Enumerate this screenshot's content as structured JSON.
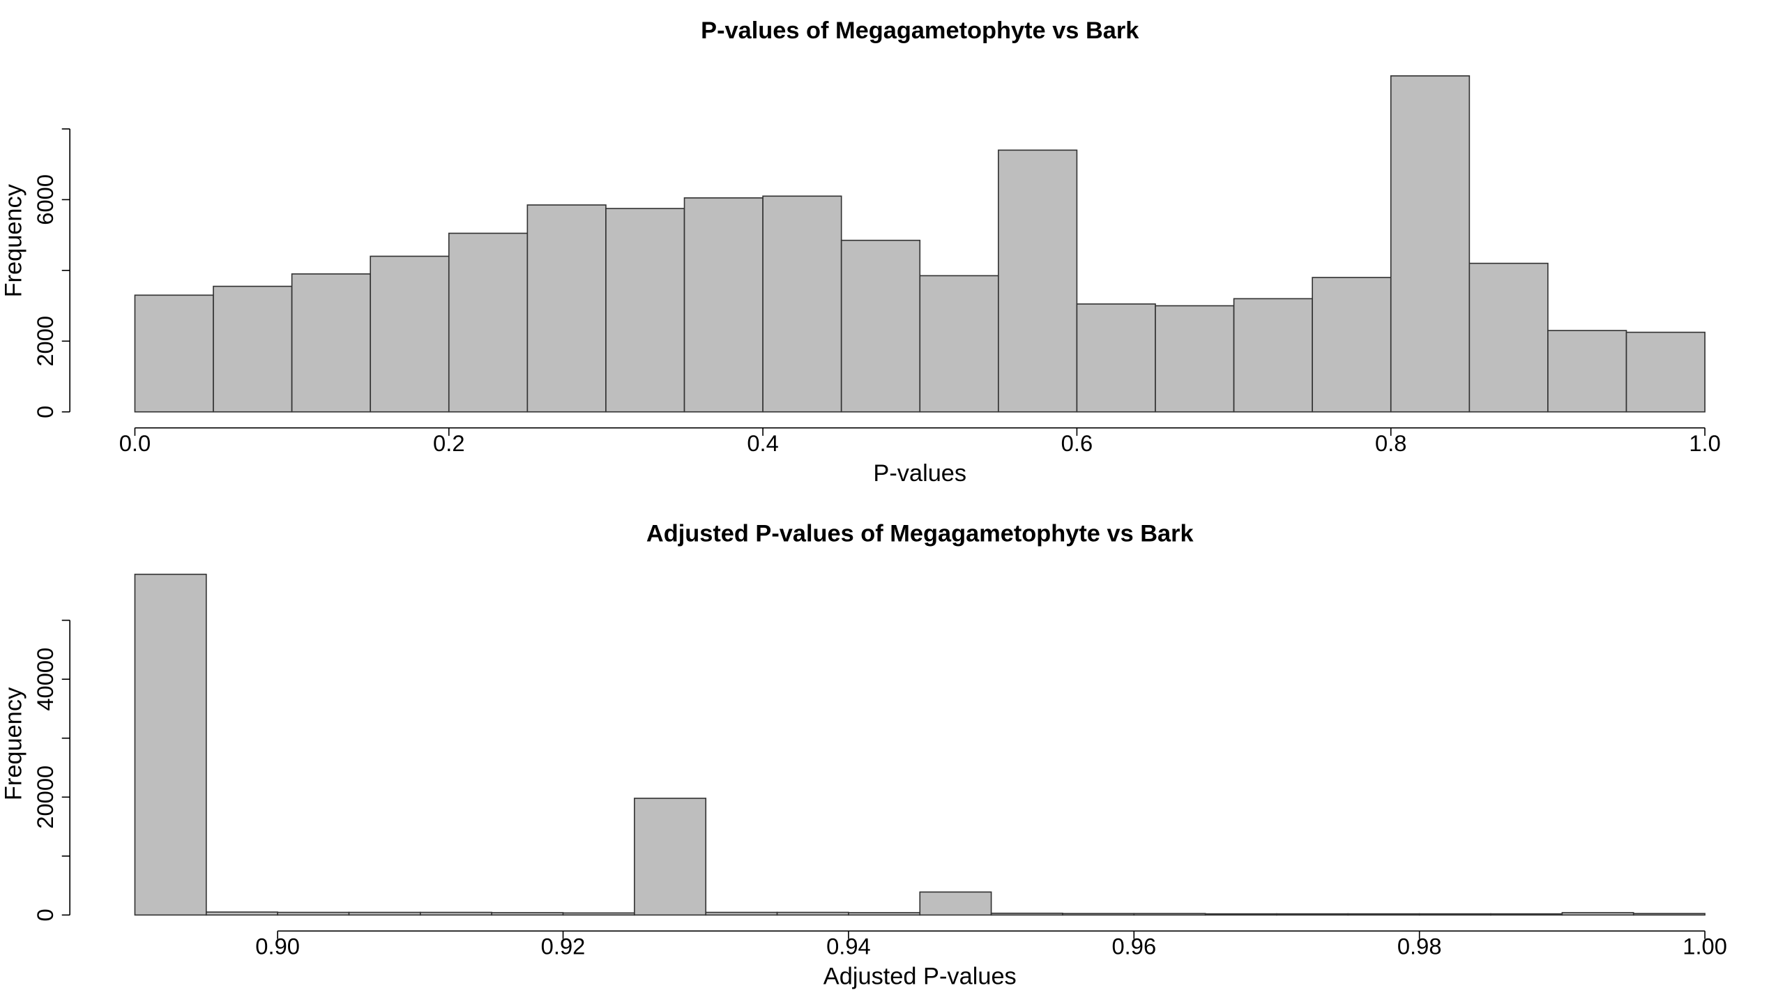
{
  "chart_data": [
    {
      "type": "histogram",
      "title": "P-values of Megagametophyte vs Bark",
      "x_label": "P-values",
      "y_label": "Frequency",
      "color": "#bebebe",
      "bins": [
        0,
        0.05,
        0.1,
        0.15,
        0.2,
        0.25,
        0.3,
        0.35,
        0.4,
        0.45,
        0.5,
        0.55,
        0.6,
        0.65,
        0.7,
        0.75,
        0.8,
        0.85,
        0.9,
        0.95,
        1
      ],
      "values": [
        3300,
        3550,
        3900,
        4400,
        5050,
        5850,
        5750,
        6050,
        6100,
        4850,
        3850,
        7400,
        3050,
        3000,
        3200,
        3800,
        9500,
        4200,
        2300,
        2250
      ],
      "xlim": [
        0,
        1
      ],
      "ylim": [
        0,
        10000
      ],
      "xticks": [
        {
          "value": 0,
          "label": "0.0"
        },
        0.2,
        0.4,
        0.6,
        0.8,
        {
          "value": 1,
          "label": "1.0"
        }
      ],
      "yticks": [
        0,
        2000,
        6000
      ],
      "ytick_marks": [
        0,
        2000,
        4000,
        6000,
        8000
      ]
    },
    {
      "type": "histogram",
      "title": "Adjusted P-values of Megagametophyte vs Bark",
      "x_label": "Adjusted P-values",
      "y_label": "Frequency",
      "color": "#bebebe",
      "bins": [
        0.89,
        0.895,
        0.9,
        0.905,
        0.91,
        0.915,
        0.92,
        0.925,
        0.93,
        0.935,
        0.94,
        0.945,
        0.95,
        0.955,
        0.96,
        0.965,
        0.97,
        0.975,
        0.98,
        0.985,
        0.99,
        0.995,
        1
      ],
      "values": [
        57800,
        500,
        450,
        450,
        450,
        400,
        350,
        19800,
        450,
        450,
        400,
        3900,
        300,
        250,
        250,
        200,
        200,
        200,
        200,
        200,
        400,
        250
      ],
      "xlim": [
        0.89,
        1
      ],
      "ylim": [
        0,
        60000
      ],
      "xticks": [
        {
          "value": 0.9,
          "label": "0.90"
        },
        0.92,
        0.94,
        0.96,
        0.98,
        {
          "value": 1,
          "label": "1.00"
        }
      ],
      "yticks": [
        0,
        20000,
        40000
      ],
      "ytick_marks": [
        0,
        10000,
        20000,
        30000,
        40000,
        50000
      ]
    }
  ]
}
